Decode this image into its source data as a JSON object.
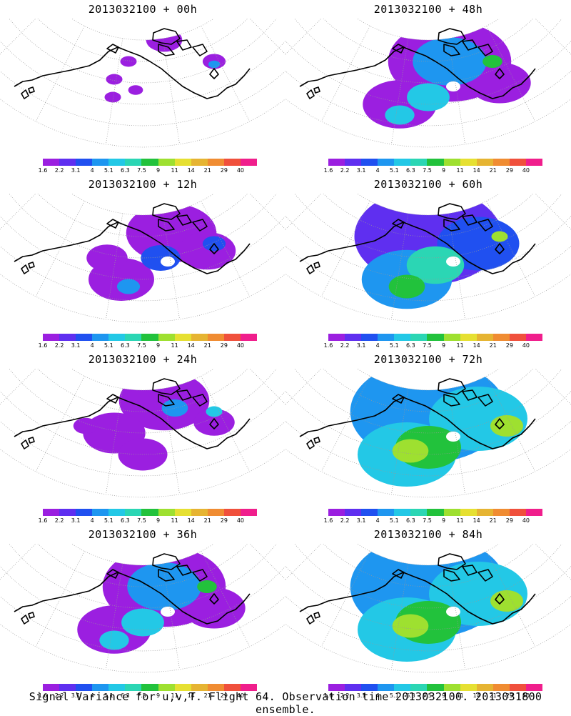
{
  "caption": "Signal Variance for u,v,T. Flight 64. Observation time 2013032100. 2013031800 ensemble.",
  "legend": {
    "labels": [
      "1.6",
      "2.2",
      "3.1",
      "4",
      "5.1",
      "6.3",
      "7.5",
      "9",
      "11",
      "14",
      "21",
      "29",
      "40"
    ],
    "colors": [
      "#9b1fe0",
      "#5f2ff0",
      "#2050f0",
      "#1e96f0",
      "#23c8e6",
      "#2bd6b4",
      "#22c23c",
      "#9ee030",
      "#e6e032",
      "#e6b432",
      "#f08c32",
      "#f0503c",
      "#f01e8c"
    ]
  },
  "panels": [
    {
      "id": "p00",
      "title": "2013032100 + 00h",
      "level": 0
    },
    {
      "id": "p48",
      "title": "2013032100 + 48h",
      "level": 4
    },
    {
      "id": "p12",
      "title": "2013032100 + 12h",
      "level": 1
    },
    {
      "id": "p60",
      "title": "2013032100 + 60h",
      "level": 5
    },
    {
      "id": "p24",
      "title": "2013032100 + 24h",
      "level": 2
    },
    {
      "id": "p72",
      "title": "2013032100 + 72h",
      "level": 6
    },
    {
      "id": "p36",
      "title": "2013032100 + 36h",
      "level": 3
    },
    {
      "id": "p84",
      "title": "2013032100 + 84h",
      "level": 7
    }
  ]
}
